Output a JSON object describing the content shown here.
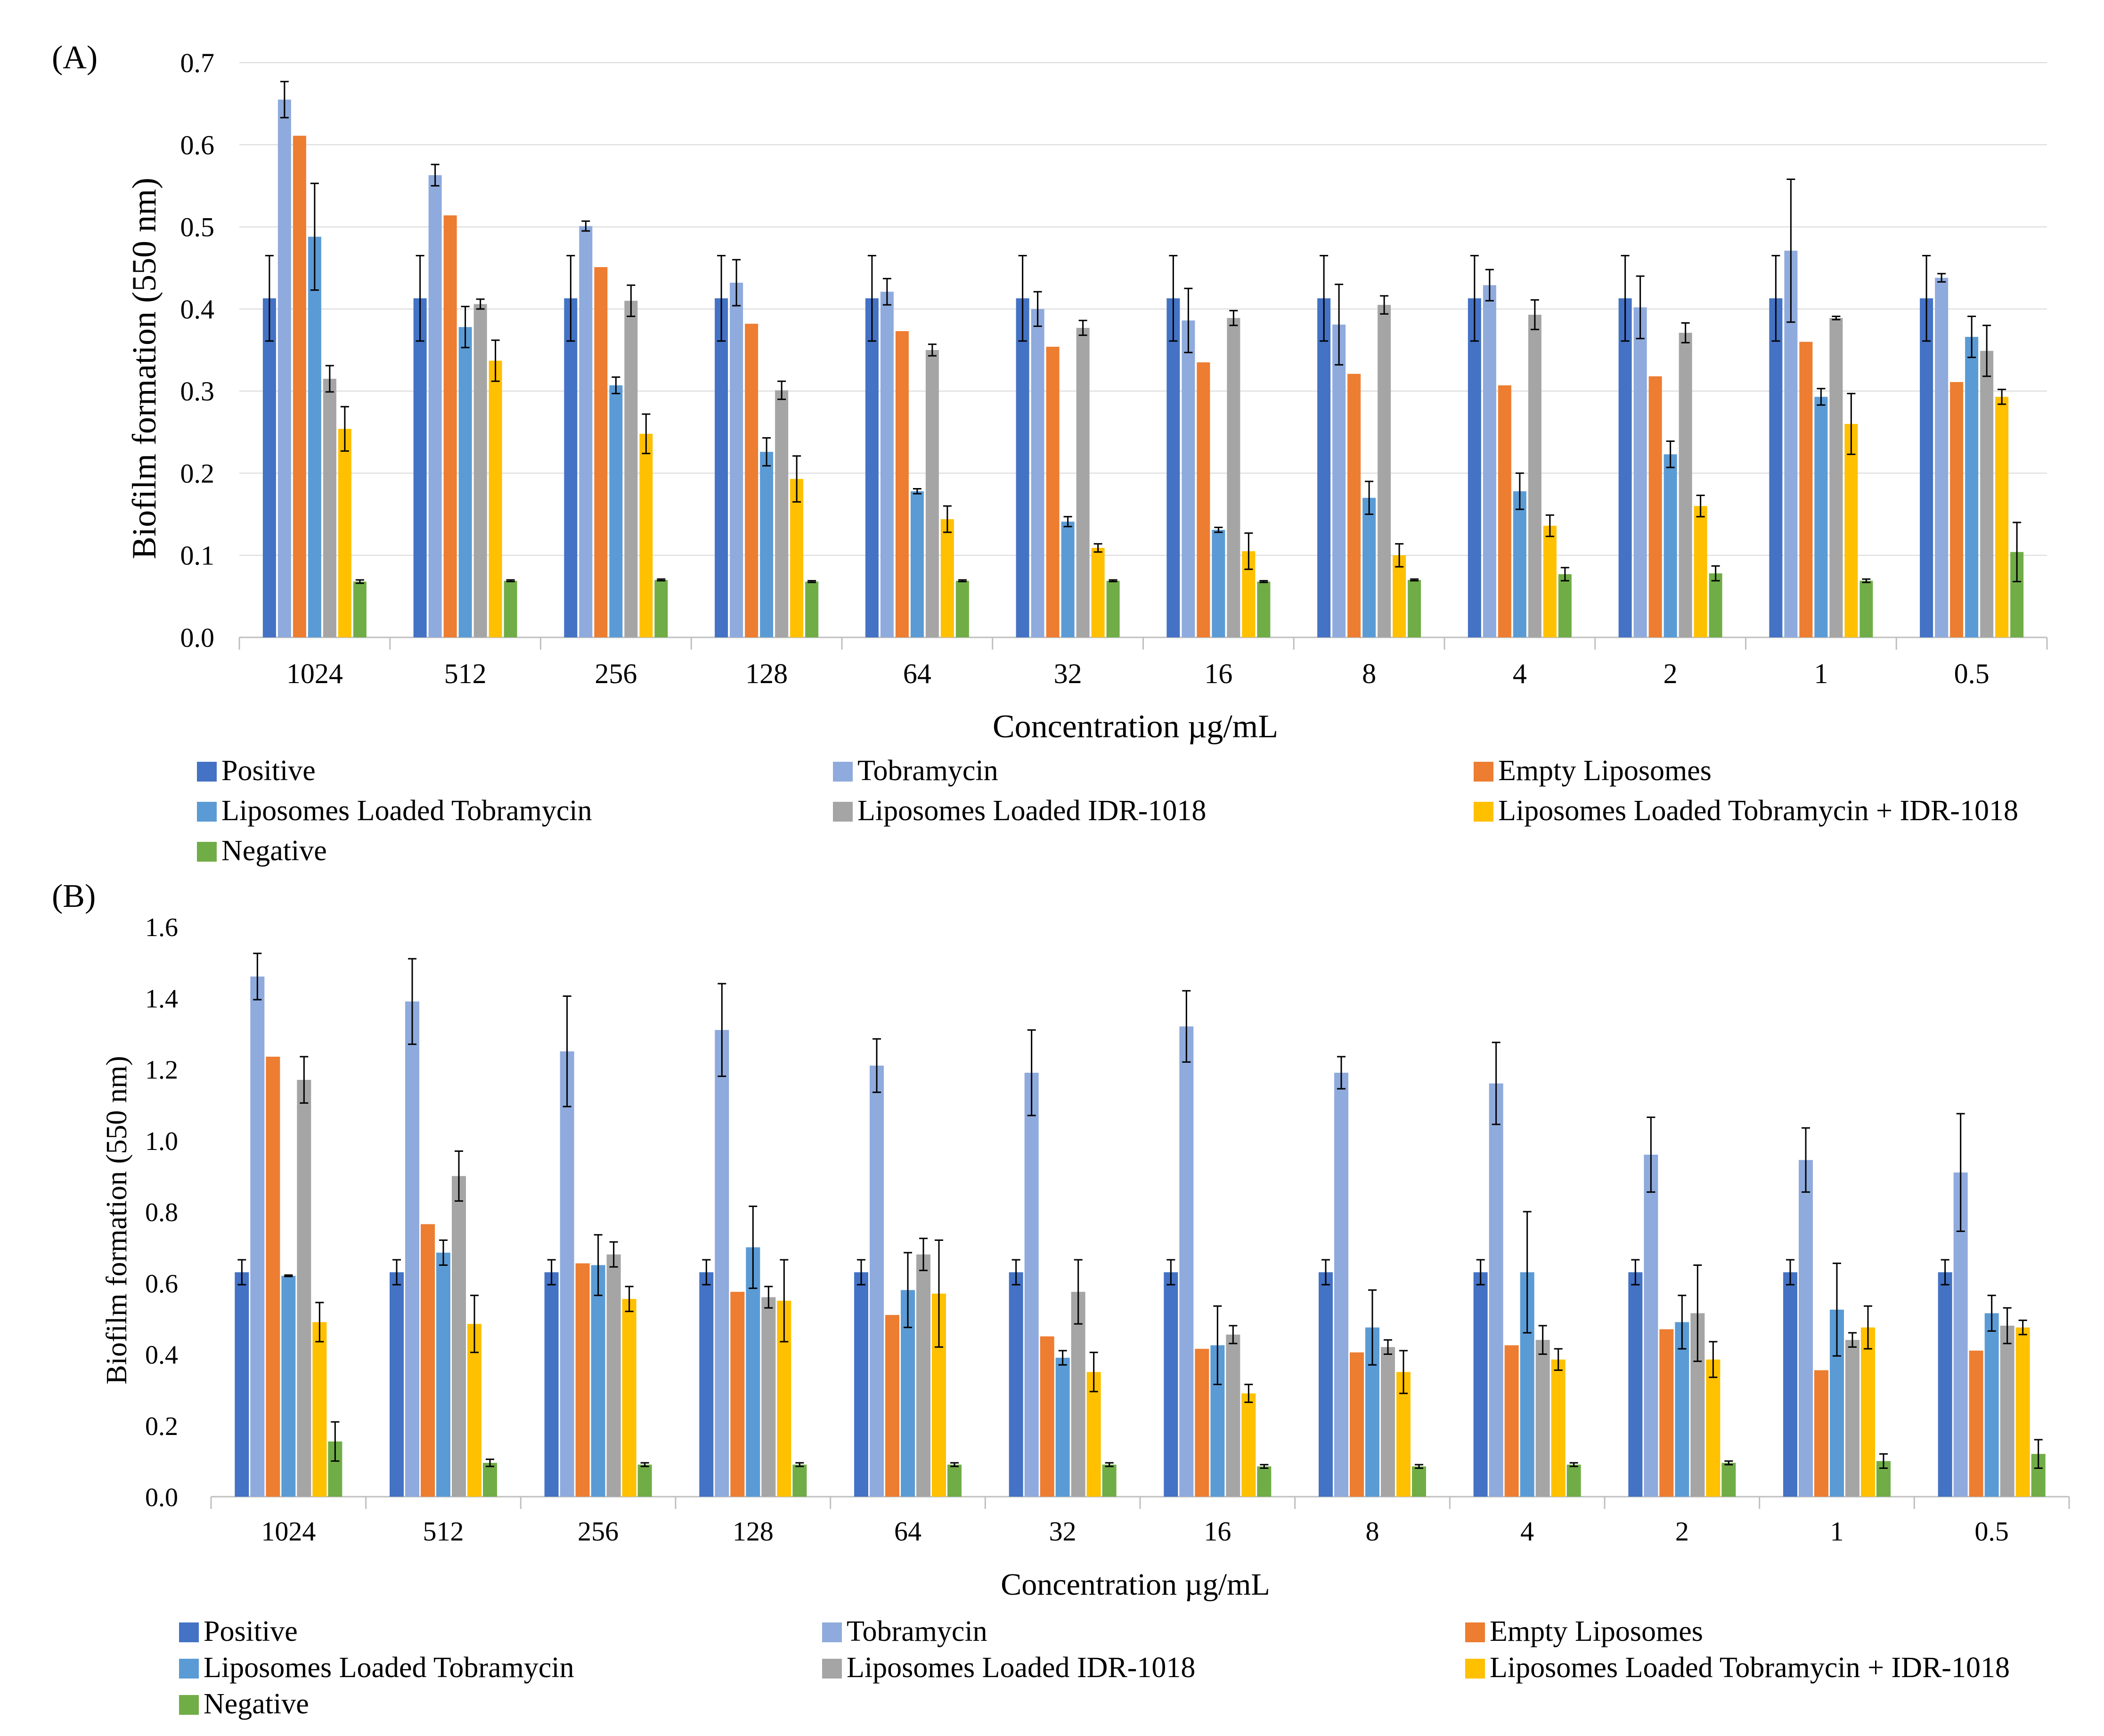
{
  "panel_labels": [
    "(A)",
    "(B)"
  ],
  "legend": {
    "entries": [
      "Positive",
      "Tobramycin",
      "Empty Liposomes",
      "Liposomes Loaded Tobramycin",
      "Liposomes Loaded IDR-1018",
      "Liposomes Loaded Tobramycin + IDR-1018",
      "Negative"
    ],
    "colors": [
      "#4472C4",
      "#8FAADC",
      "#ED7D31",
      "#5B9BD5",
      "#A5A5A5",
      "#FFC000",
      "#70AD47"
    ]
  },
  "chart_data": [
    {
      "type": "bar",
      "panel": "(A)",
      "title": "",
      "xlabel": "Concentration µg/mL",
      "ylabel": "Biofilm formation (550 nm)",
      "ylim": [
        0,
        0.7
      ],
      "yticks": [
        "0.0",
        "0.1",
        "0.2",
        "0.3",
        "0.4",
        "0.5",
        "0.6",
        "0.7"
      ],
      "categories": [
        "1024",
        "512",
        "256",
        "128",
        "64",
        "32",
        "16",
        "8",
        "4",
        "2",
        "1",
        "0.5"
      ],
      "series": [
        {
          "name": "Positive",
          "values": [
            0.413,
            0.413,
            0.413,
            0.413,
            0.413,
            0.413,
            0.413,
            0.413,
            0.413,
            0.413,
            0.413,
            0.413
          ],
          "errors": [
            0.052,
            0.052,
            0.052,
            0.052,
            0.052,
            0.052,
            0.052,
            0.052,
            0.052,
            0.052,
            0.052,
            0.052
          ]
        },
        {
          "name": "Tobramycin",
          "values": [
            0.655,
            0.563,
            0.501,
            0.432,
            0.421,
            0.4,
            0.386,
            0.381,
            0.429,
            0.402,
            0.471,
            0.438
          ],
          "errors": [
            0.022,
            0.013,
            0.006,
            0.028,
            0.016,
            0.021,
            0.039,
            0.049,
            0.019,
            0.038,
            0.087,
            0.005
          ]
        },
        {
          "name": "Empty Liposomes",
          "values": [
            0.611,
            0.514,
            0.451,
            0.382,
            0.373,
            0.354,
            0.335,
            0.321,
            0.307,
            0.318,
            0.36,
            0.311
          ]
        },
        {
          "name": "Liposomes Loaded Tobramycin",
          "values": [
            0.488,
            0.378,
            0.307,
            0.226,
            0.178,
            0.141,
            0.131,
            0.17,
            0.178,
            0.223,
            0.293,
            0.366
          ],
          "errors": [
            0.065,
            0.025,
            0.01,
            0.017,
            0.003,
            0.006,
            0.003,
            0.02,
            0.022,
            0.016,
            0.01,
            0.025
          ]
        },
        {
          "name": "Liposomes Loaded IDR-1018",
          "values": [
            0.315,
            0.406,
            0.41,
            0.301,
            0.35,
            0.377,
            0.389,
            0.405,
            0.393,
            0.371,
            0.389,
            0.349
          ],
          "errors": [
            0.016,
            0.006,
            0.019,
            0.011,
            0.007,
            0.009,
            0.009,
            0.011,
            0.018,
            0.012,
            0.002,
            0.031
          ]
        },
        {
          "name": "Liposomes Loaded Tobramycin + IDR-1018",
          "values": [
            0.254,
            0.337,
            0.248,
            0.193,
            0.144,
            0.109,
            0.105,
            0.1,
            0.136,
            0.16,
            0.26,
            0.293
          ],
          "errors": [
            0.027,
            0.025,
            0.024,
            0.028,
            0.016,
            0.005,
            0.022,
            0.014,
            0.013,
            0.013,
            0.037,
            0.009
          ]
        },
        {
          "name": "Negative",
          "values": [
            0.068,
            0.069,
            0.07,
            0.068,
            0.069,
            0.069,
            0.068,
            0.07,
            0.077,
            0.078,
            0.069,
            0.104
          ],
          "errors": [
            0.002,
            0.001,
            0.001,
            0.001,
            0.001,
            0.001,
            0.001,
            0.001,
            0.008,
            0.009,
            0.002,
            0.036
          ]
        }
      ]
    },
    {
      "type": "bar",
      "panel": "(B)",
      "title": "",
      "xlabel": "Concentration µg/mL",
      "ylabel": "Biofilm formation (550 nm)",
      "ylim": [
        0,
        1.6
      ],
      "yticks": [
        "0.0",
        "0.2",
        "0.4",
        "0.6",
        "0.8",
        "1.0",
        "1.2",
        "1.4",
        "1.6"
      ],
      "categories": [
        "1024",
        "512",
        "256",
        "128",
        "64",
        "32",
        "16",
        "8",
        "4",
        "2",
        "1",
        "0.5"
      ],
      "series": [
        {
          "name": "Positive",
          "values": [
            0.63,
            0.63,
            0.63,
            0.63,
            0.63,
            0.63,
            0.63,
            0.63,
            0.63,
            0.63,
            0.63,
            0.63
          ],
          "errors": [
            0.035,
            0.035,
            0.035,
            0.035,
            0.035,
            0.035,
            0.035,
            0.035,
            0.035,
            0.035,
            0.035,
            0.035
          ]
        },
        {
          "name": "Tobramycin",
          "values": [
            1.46,
            1.39,
            1.25,
            1.31,
            1.21,
            1.19,
            1.32,
            1.19,
            1.16,
            0.96,
            0.945,
            0.91
          ],
          "errors": [
            0.065,
            0.12,
            0.155,
            0.13,
            0.075,
            0.12,
            0.1,
            0.045,
            0.115,
            0.105,
            0.09,
            0.165
          ]
        },
        {
          "name": "Empty Liposomes",
          "values": [
            1.235,
            0.765,
            0.655,
            0.575,
            0.51,
            0.45,
            0.415,
            0.405,
            0.425,
            0.47,
            0.355,
            0.41
          ]
        },
        {
          "name": "Liposomes Loaded Tobramycin",
          "values": [
            0.62,
            0.685,
            0.65,
            0.7,
            0.58,
            0.39,
            0.425,
            0.475,
            0.63,
            0.49,
            0.525,
            0.515
          ],
          "errors": [
            0.002,
            0.035,
            0.085,
            0.115,
            0.105,
            0.02,
            0.11,
            0.105,
            0.17,
            0.075,
            0.13,
            0.05
          ]
        },
        {
          "name": "Liposomes Loaded IDR-1018",
          "values": [
            1.17,
            0.9,
            0.68,
            0.56,
            0.68,
            0.575,
            0.455,
            0.42,
            0.44,
            0.515,
            0.44,
            0.48
          ],
          "errors": [
            0.065,
            0.07,
            0.035,
            0.03,
            0.045,
            0.09,
            0.025,
            0.02,
            0.04,
            0.135,
            0.02,
            0.05
          ]
        },
        {
          "name": "Liposomes Loaded Tobramycin + IDR-1018",
          "values": [
            0.49,
            0.485,
            0.555,
            0.55,
            0.57,
            0.35,
            0.29,
            0.35,
            0.385,
            0.385,
            0.475,
            0.475
          ],
          "errors": [
            0.055,
            0.08,
            0.035,
            0.115,
            0.15,
            0.055,
            0.025,
            0.06,
            0.03,
            0.05,
            0.06,
            0.02
          ]
        },
        {
          "name": "Negative",
          "values": [
            0.155,
            0.095,
            0.09,
            0.09,
            0.09,
            0.09,
            0.085,
            0.085,
            0.09,
            0.095,
            0.1,
            0.12
          ],
          "errors": [
            0.055,
            0.01,
            0.005,
            0.005,
            0.005,
            0.005,
            0.005,
            0.005,
            0.005,
            0.005,
            0.02,
            0.04
          ]
        }
      ]
    }
  ]
}
